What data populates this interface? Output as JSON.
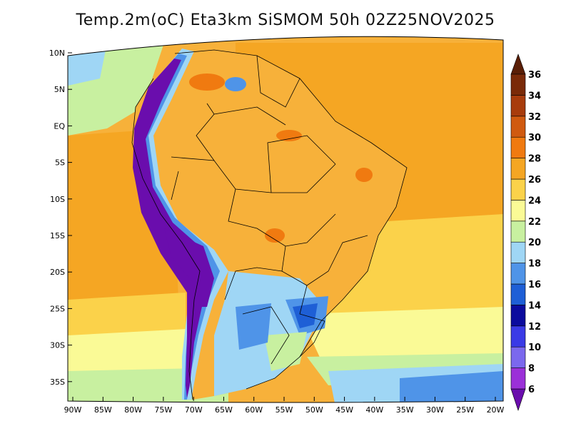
{
  "title": "Temp.2m(oC) Eta3km SiSMOM 50h 02Z25NOV2025",
  "map": {
    "lon_range": [
      -90,
      -20
    ],
    "lat_range": [
      -37,
      12
    ],
    "lat_ticks": [
      "10N",
      "5N",
      "EQ",
      "5S",
      "10S",
      "15S",
      "20S",
      "25S",
      "30S",
      "35S"
    ],
    "lon_ticks": [
      "90W",
      "85W",
      "80W",
      "75W",
      "70W",
      "65W",
      "60W",
      "55W",
      "50W",
      "45W",
      "40W",
      "35W",
      "30W",
      "25W",
      "20W"
    ]
  },
  "colorbar": {
    "labels": [
      "6",
      "8",
      "10",
      "12",
      "14",
      "16",
      "18",
      "20",
      "22",
      "24",
      "26",
      "28",
      "30",
      "32",
      "34",
      "36"
    ],
    "colors": [
      "#6a0dad",
      "#9b30d8",
      "#7b68ee",
      "#3a3ae6",
      "#0b0b9e",
      "#1e5fd6",
      "#4f94e8",
      "#9fd6f5",
      "#c8f0a0",
      "#fafa96",
      "#fbd24a",
      "#f5a623",
      "#f07a10",
      "#d05a10",
      "#a83c0c",
      "#7a2a08",
      "#5a1e06"
    ]
  }
}
